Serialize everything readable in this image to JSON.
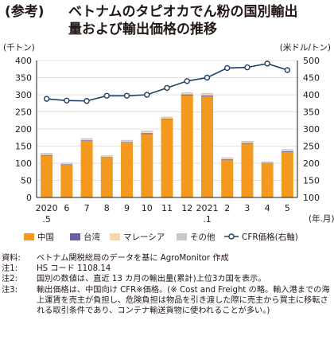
{
  "title": {
    "prefix": "(参考)",
    "line1": "ベトナムのタピオカでん粉の国別輸出",
    "line2": "量および輸出価格の推移"
  },
  "chart_data": {
    "type": "bar",
    "stacked": true,
    "left_unit": "(千トン)",
    "right_unit": "(米ドル/トン)",
    "x_unit": "(年.月)",
    "categories": [
      "2020\n.5",
      "6",
      "7",
      "8",
      "9",
      "10",
      "11",
      "12",
      "2021\n.1",
      "2",
      "3",
      "4",
      "5"
    ],
    "ylim": [
      0,
      400
    ],
    "yticks": [
      0,
      50,
      100,
      150,
      200,
      250,
      300,
      350,
      400
    ],
    "y2lim": [
      100,
      500
    ],
    "y2ticks": [
      100,
      150,
      200,
      250,
      300,
      350,
      400,
      450,
      500
    ],
    "series": [
      {
        "name": "中国",
        "color": "#f39a1e",
        "values": [
          122,
          95,
          165,
          116,
          160,
          185,
          228,
          298,
          295,
          110,
          157,
          100,
          133
        ]
      },
      {
        "name": "台湾",
        "color": "#6a5fa8",
        "values": [
          2,
          2,
          2,
          2,
          2,
          3,
          2,
          3,
          3,
          2,
          2,
          1,
          2
        ]
      },
      {
        "name": "マレーシア",
        "color": "#f5d9a6",
        "values": [
          3,
          3,
          3,
          3,
          3,
          4,
          3,
          3,
          4,
          3,
          3,
          2,
          3
        ]
      },
      {
        "name": "その他",
        "color": "#c8c8c8",
        "values": [
          3,
          2,
          3,
          2,
          3,
          3,
          3,
          3,
          3,
          2,
          3,
          2,
          3
        ]
      }
    ],
    "line": {
      "name": "CFR価格(右軸)",
      "color": "#1e3f66",
      "axis": "right",
      "values": [
        388,
        383,
        382,
        397,
        397,
        400,
        420,
        440,
        450,
        478,
        480,
        491,
        472
      ]
    }
  },
  "notes": [
    {
      "label": "資料:",
      "text": "ベトナム関税総局のデータを基に AgroMonitor 作成"
    },
    {
      "label": "注1:",
      "text": "HS コード 1108.14"
    },
    {
      "label": "注2:",
      "text": "国別の数値は、直近 13 カ月の輸出量(累計)上位3カ国を表示。"
    },
    {
      "label": "注3:",
      "text": "輸出価格は、中国向け CFR※価格。(※ Cost and Freight の略。輸入港までの海上運賃を売主が負担し、危険負担は物品を引き渡した際に売主から買主に移転される取引条件であり、コンテナ輸送貨物に使われることが多い。)"
    }
  ]
}
